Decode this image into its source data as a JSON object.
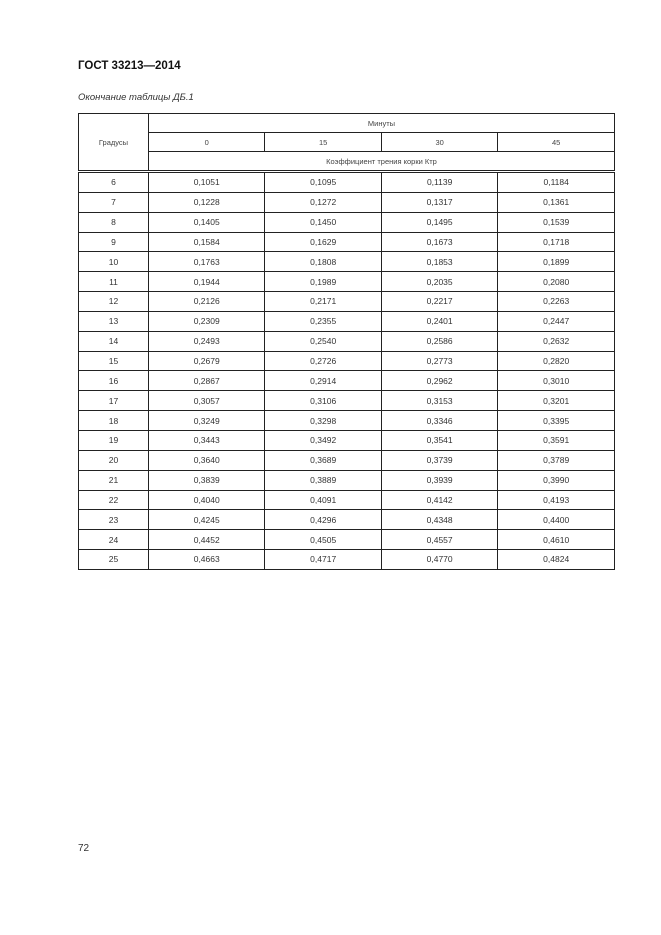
{
  "header": {
    "title": "ГОСТ 33213—2014"
  },
  "caption": "Окончание таблицы ДБ.1",
  "table": {
    "col_degrees": "Градусы",
    "col_minutes": "Минуты",
    "minutes": [
      "0",
      "15",
      "30",
      "45"
    ],
    "subheader": "Коэффициент трения корки Ктр",
    "rows": [
      [
        "6",
        "0,1051",
        "0,1095",
        "0,1139",
        "0,1184"
      ],
      [
        "7",
        "0,1228",
        "0,1272",
        "0,1317",
        "0,1361"
      ],
      [
        "8",
        "0,1405",
        "0,1450",
        "0,1495",
        "0,1539"
      ],
      [
        "9",
        "0,1584",
        "0,1629",
        "0,1673",
        "0,1718"
      ],
      [
        "10",
        "0,1763",
        "0,1808",
        "0,1853",
        "0,1899"
      ],
      [
        "11",
        "0,1944",
        "0,1989",
        "0,2035",
        "0,2080"
      ],
      [
        "12",
        "0,2126",
        "0,2171",
        "0,2217",
        "0,2263"
      ],
      [
        "13",
        "0,2309",
        "0,2355",
        "0,2401",
        "0,2447"
      ],
      [
        "14",
        "0,2493",
        "0,2540",
        "0,2586",
        "0,2632"
      ],
      [
        "15",
        "0,2679",
        "0,2726",
        "0,2773",
        "0,2820"
      ],
      [
        "16",
        "0,2867",
        "0,2914",
        "0,2962",
        "0,3010"
      ],
      [
        "17",
        "0,3057",
        "0,3106",
        "0,3153",
        "0,3201"
      ],
      [
        "18",
        "0,3249",
        "0,3298",
        "0,3346",
        "0,3395"
      ],
      [
        "19",
        "0,3443",
        "0,3492",
        "0,3541",
        "0,3591"
      ],
      [
        "20",
        "0,3640",
        "0,3689",
        "0,3739",
        "0,3789"
      ],
      [
        "21",
        "0,3839",
        "0,3889",
        "0,3939",
        "0,3990"
      ],
      [
        "22",
        "0,4040",
        "0,4091",
        "0,4142",
        "0,4193"
      ],
      [
        "23",
        "0,4245",
        "0,4296",
        "0,4348",
        "0,4400"
      ],
      [
        "24",
        "0,4452",
        "0,4505",
        "0,4557",
        "0,4610"
      ],
      [
        "25",
        "0,4663",
        "0,4717",
        "0,4770",
        "0,4824"
      ]
    ]
  },
  "footer": {
    "page_number": "72"
  }
}
